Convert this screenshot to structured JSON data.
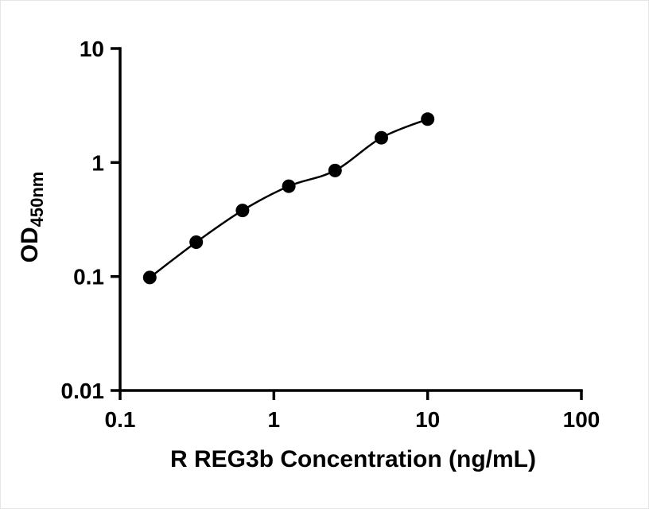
{
  "figure": {
    "background_color": "#ffffff",
    "foreground_color": "#000000"
  },
  "chart_data": {
    "type": "scatter",
    "subtype": "standard-curve-with-fit-line",
    "title": "",
    "xlabel": "R REG3b Concentration (ng/mL)",
    "ylabel_main": "OD",
    "ylabel_sub": "450nm",
    "x_scale": "log",
    "y_scale": "log",
    "xlim": [
      0.1,
      100
    ],
    "ylim": [
      0.01,
      10
    ],
    "x_tick_values": [
      0.1,
      1,
      10,
      100
    ],
    "x_tick_labels": [
      "0.1",
      "1",
      "10",
      "100"
    ],
    "y_tick_values": [
      0.01,
      0.1,
      1,
      10
    ],
    "y_tick_labels": [
      "0.01",
      "0.1",
      "1",
      "10"
    ],
    "x": [
      0.156,
      0.3125,
      0.625,
      1.25,
      2.5,
      5,
      10
    ],
    "y": [
      0.098,
      0.2,
      0.38,
      0.62,
      0.85,
      1.65,
      2.4
    ],
    "grid": false,
    "legend": "none",
    "marker_color": "#000000",
    "line_color": "#000000"
  }
}
